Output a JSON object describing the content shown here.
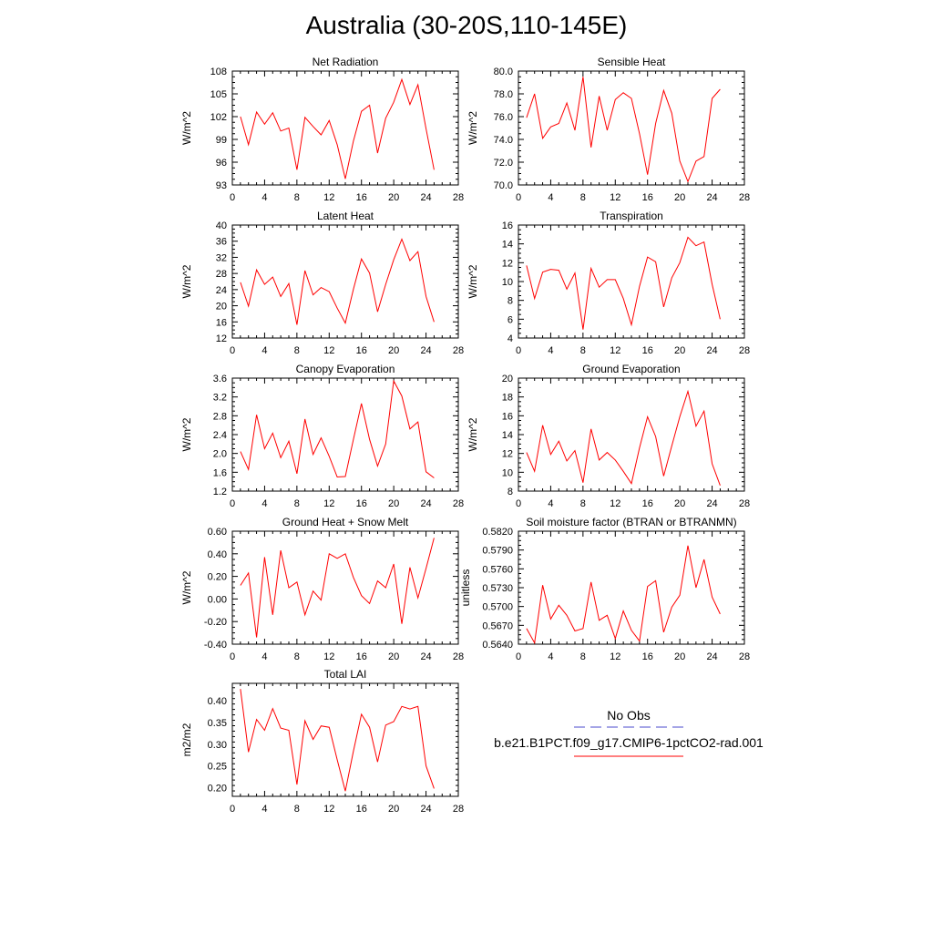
{
  "page": {
    "title": "Australia (30-20S,110-145E)"
  },
  "legend": {
    "entries": [
      {
        "label": "No Obs",
        "color": "#4b4bcc",
        "style": "dashed"
      },
      {
        "label": "b.e21.B1PCT.f09_g17.CMIP6-1pctCO2-rad.001",
        "color": "#ff0000",
        "style": "solid"
      }
    ]
  },
  "chart_data": [
    {
      "type": "line",
      "title": "Net Radiation",
      "ylabel": "W/m^2",
      "xlim": [
        0,
        28
      ],
      "ylim": [
        93,
        108
      ],
      "xticks": [
        0,
        4,
        8,
        12,
        16,
        20,
        24,
        28
      ],
      "yticks": [
        "93",
        "96",
        "99",
        "102",
        "105",
        "108"
      ],
      "series": [
        {
          "color": "#ff0000",
          "x": [
            1,
            2,
            3,
            4,
            5,
            6,
            7,
            8,
            9,
            10,
            11,
            12,
            13,
            14,
            15,
            16,
            17,
            18,
            19,
            20,
            21,
            22,
            23,
            24,
            25
          ],
          "y": [
            102.0,
            98.3,
            102.6,
            101.0,
            102.5,
            100.1,
            100.5,
            95.0,
            101.9,
            100.7,
            99.6,
            101.5,
            98.3,
            93.8,
            98.8,
            102.7,
            103.5,
            97.2,
            101.8,
            103.9,
            106.9,
            103.6,
            106.2,
            100.4,
            95.0
          ]
        }
      ]
    },
    {
      "type": "line",
      "title": "Sensible Heat",
      "ylabel": "W/m^2",
      "xlim": [
        0,
        28
      ],
      "ylim": [
        70,
        80
      ],
      "xticks": [
        0,
        4,
        8,
        12,
        16,
        20,
        24,
        28
      ],
      "yticks": [
        "70.0",
        "72.0",
        "74.0",
        "76.0",
        "78.0",
        "80.0"
      ],
      "series": [
        {
          "color": "#ff0000",
          "x": [
            1,
            2,
            3,
            4,
            5,
            6,
            7,
            8,
            9,
            10,
            11,
            12,
            13,
            14,
            15,
            16,
            17,
            18,
            19,
            20,
            21,
            22,
            23,
            24,
            25
          ],
          "y": [
            75.9,
            78.0,
            74.1,
            75.1,
            75.4,
            77.2,
            74.8,
            79.5,
            73.3,
            77.8,
            74.8,
            77.5,
            78.1,
            77.6,
            74.5,
            70.9,
            75.4,
            78.3,
            76.3,
            72.1,
            70.3,
            72.1,
            72.5,
            77.6,
            78.4
          ]
        }
      ]
    },
    {
      "type": "line",
      "title": "Latent Heat",
      "ylabel": "W/m^2",
      "xlim": [
        0,
        28
      ],
      "ylim": [
        12,
        40
      ],
      "xticks": [
        0,
        4,
        8,
        12,
        16,
        20,
        24,
        28
      ],
      "yticks": [
        "12",
        "16",
        "20",
        "24",
        "28",
        "32",
        "36",
        "40"
      ],
      "series": [
        {
          "color": "#ff0000",
          "x": [
            1,
            2,
            3,
            4,
            5,
            6,
            7,
            8,
            9,
            10,
            11,
            12,
            13,
            14,
            15,
            16,
            17,
            18,
            19,
            20,
            21,
            22,
            23,
            24,
            25
          ],
          "y": [
            25.8,
            19.9,
            28.9,
            25.3,
            27.1,
            22.3,
            25.5,
            15.3,
            28.7,
            22.7,
            24.5,
            23.5,
            19.4,
            15.7,
            24.1,
            31.6,
            28.1,
            18.5,
            25.3,
            31.4,
            36.5,
            31.2,
            33.4,
            22.3,
            16.0
          ]
        }
      ]
    },
    {
      "type": "line",
      "title": "Transpiration",
      "ylabel": "W/m^2",
      "xlim": [
        0,
        28
      ],
      "ylim": [
        4,
        16
      ],
      "xticks": [
        0,
        4,
        8,
        12,
        16,
        20,
        24,
        28
      ],
      "yticks": [
        "4",
        "6",
        "8",
        "10",
        "12",
        "14",
        "16"
      ],
      "series": [
        {
          "color": "#ff0000",
          "x": [
            1,
            2,
            3,
            4,
            5,
            6,
            7,
            8,
            9,
            10,
            11,
            12,
            13,
            14,
            15,
            16,
            17,
            18,
            19,
            20,
            21,
            22,
            23,
            24,
            25
          ],
          "y": [
            11.7,
            8.2,
            11.0,
            11.3,
            11.2,
            9.2,
            10.9,
            4.9,
            11.4,
            9.4,
            10.2,
            10.2,
            8.2,
            5.4,
            9.5,
            12.6,
            12.1,
            7.3,
            10.4,
            12.0,
            14.7,
            13.8,
            14.2,
            9.7,
            6.0
          ]
        }
      ]
    },
    {
      "type": "line",
      "title": "Canopy Evaporation",
      "ylabel": "W/m^2",
      "xlim": [
        0,
        28
      ],
      "ylim": [
        1.2,
        3.6
      ],
      "xticks": [
        0,
        4,
        8,
        12,
        16,
        20,
        24,
        28
      ],
      "yticks": [
        "1.2",
        "1.6",
        "2.0",
        "2.4",
        "2.8",
        "3.2",
        "3.6"
      ],
      "series": [
        {
          "color": "#ff0000",
          "x": [
            1,
            2,
            3,
            4,
            5,
            6,
            7,
            8,
            9,
            10,
            11,
            12,
            13,
            14,
            15,
            16,
            17,
            18,
            19,
            20,
            21,
            22,
            23,
            24,
            25
          ],
          "y": [
            2.04,
            1.66,
            2.82,
            2.1,
            2.43,
            1.91,
            2.26,
            1.57,
            2.73,
            1.98,
            2.33,
            1.94,
            1.5,
            1.51,
            2.3,
            3.06,
            2.3,
            1.73,
            2.2,
            3.54,
            3.22,
            2.52,
            2.67,
            1.61,
            1.48
          ]
        }
      ]
    },
    {
      "type": "line",
      "title": "Ground Evaporation",
      "ylabel": "W/m^2",
      "xlim": [
        0,
        28
      ],
      "ylim": [
        8,
        20
      ],
      "xticks": [
        0,
        4,
        8,
        12,
        16,
        20,
        24,
        28
      ],
      "yticks": [
        "8",
        "10",
        "12",
        "14",
        "16",
        "18",
        "20"
      ],
      "series": [
        {
          "color": "#ff0000",
          "x": [
            1,
            2,
            3,
            4,
            5,
            6,
            7,
            8,
            9,
            10,
            11,
            12,
            13,
            14,
            15,
            16,
            17,
            18,
            19,
            20,
            21,
            22,
            23,
            24,
            25
          ],
          "y": [
            12.1,
            10.1,
            15.0,
            11.9,
            13.3,
            11.2,
            12.3,
            8.9,
            14.6,
            11.3,
            12.1,
            11.3,
            10.1,
            8.8,
            12.6,
            15.9,
            13.8,
            9.6,
            12.8,
            15.9,
            18.6,
            14.9,
            16.5,
            10.9,
            8.6
          ]
        }
      ]
    },
    {
      "type": "line",
      "title": "Ground Heat + Snow Melt",
      "ylabel": "W/m^2",
      "xlim": [
        0,
        28
      ],
      "ylim": [
        -0.4,
        0.6
      ],
      "xticks": [
        0,
        4,
        8,
        12,
        16,
        20,
        24,
        28
      ],
      "yticks": [
        "-0.40",
        "-0.20",
        "0.00",
        "0.20",
        "0.40",
        "0.60"
      ],
      "series": [
        {
          "color": "#ff0000",
          "x": [
            1,
            2,
            3,
            4,
            5,
            6,
            7,
            8,
            9,
            10,
            11,
            12,
            13,
            14,
            15,
            16,
            17,
            18,
            19,
            20,
            21,
            22,
            23,
            24,
            25
          ],
          "y": [
            0.12,
            0.23,
            -0.34,
            0.37,
            -0.14,
            0.43,
            0.1,
            0.15,
            -0.14,
            0.07,
            -0.01,
            0.4,
            0.36,
            0.4,
            0.19,
            0.03,
            -0.04,
            0.16,
            0.1,
            0.31,
            -0.22,
            0.28,
            0.01,
            0.27,
            0.54
          ]
        }
      ]
    },
    {
      "type": "line",
      "title": "Soil moisture factor (BTRAN or BTRANMN)",
      "ylabel": "unitless",
      "xlim": [
        0,
        28
      ],
      "ylim": [
        0.564,
        0.582
      ],
      "xticks": [
        0,
        4,
        8,
        12,
        16,
        20,
        24,
        28
      ],
      "yticks": [
        "0.5640",
        "0.5670",
        "0.5700",
        "0.5730",
        "0.5760",
        "0.5790",
        "0.5820"
      ],
      "series": [
        {
          "color": "#ff0000",
          "x": [
            1,
            2,
            3,
            4,
            5,
            6,
            7,
            8,
            9,
            10,
            11,
            12,
            13,
            14,
            15,
            16,
            17,
            18,
            19,
            20,
            21,
            22,
            23,
            24,
            25
          ],
          "y": [
            0.5665,
            0.5642,
            0.5734,
            0.568,
            0.5702,
            0.5686,
            0.5661,
            0.5665,
            0.5739,
            0.5678,
            0.5686,
            0.5649,
            0.5693,
            0.5662,
            0.5645,
            0.5732,
            0.5741,
            0.5659,
            0.5699,
            0.5718,
            0.5797,
            0.573,
            0.5775,
            0.5715,
            0.5688
          ]
        }
      ]
    },
    {
      "type": "line",
      "title": "Total LAI",
      "ylabel": "m2/m2",
      "xlim": [
        0,
        28
      ],
      "ylim": [
        0.18,
        0.44
      ],
      "xticks": [
        0,
        4,
        8,
        12,
        16,
        20,
        24,
        28
      ],
      "yticks": [
        "0.20",
        "0.25",
        "0.30",
        "0.35",
        "0.40"
      ],
      "series": [
        {
          "color": "#ff0000",
          "x": [
            1,
            2,
            3,
            4,
            5,
            6,
            7,
            8,
            9,
            10,
            11,
            12,
            13,
            14,
            15,
            16,
            17,
            18,
            19,
            20,
            21,
            22,
            23,
            24,
            25
          ],
          "y": [
            0.427,
            0.282,
            0.357,
            0.332,
            0.382,
            0.337,
            0.332,
            0.207,
            0.354,
            0.311,
            0.342,
            0.339,
            0.264,
            0.192,
            0.284,
            0.369,
            0.339,
            0.259,
            0.344,
            0.352,
            0.387,
            0.381,
            0.387,
            0.25,
            0.198
          ]
        }
      ]
    }
  ]
}
